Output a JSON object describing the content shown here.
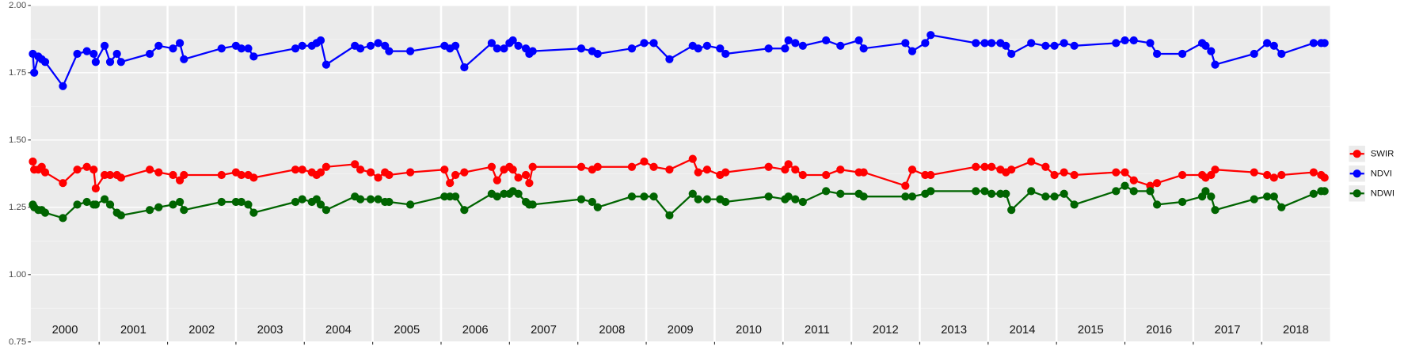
{
  "chart_data": {
    "type": "line",
    "x": [
      2000.03,
      2000.05,
      2000.11,
      2000.16,
      2000.21,
      2000.47,
      2000.68,
      2000.82,
      2000.92,
      2000.95,
      2001.08,
      2001.16,
      2001.26,
      2001.32,
      2001.74,
      2001.87,
      2002.08,
      2002.18,
      2002.24,
      2002.79,
      2003.0,
      2003.08,
      2003.18,
      2003.26,
      2003.87,
      2003.97,
      2004.11,
      2004.18,
      2004.24,
      2004.32,
      2004.74,
      2004.82,
      2004.97,
      2005.08,
      2005.18,
      2005.24,
      2005.55,
      2006.05,
      2006.13,
      2006.21,
      2006.34,
      2006.74,
      2006.82,
      2006.92,
      2007.0,
      2007.05,
      2007.13,
      2007.24,
      2007.29,
      2007.34,
      2008.05,
      2008.21,
      2008.29,
      2008.79,
      2008.97,
      2009.11,
      2009.34,
      2009.68,
      2009.76,
      2009.89,
      2010.08,
      2010.16,
      2010.79,
      2011.03,
      2011.08,
      2011.18,
      2011.29,
      2011.63,
      2011.84,
      2012.11,
      2012.18,
      2012.79,
      2012.89,
      2013.08,
      2013.16,
      2013.82,
      2013.95,
      2014.05,
      2014.18,
      2014.26,
      2014.34,
      2014.63,
      2014.84,
      2014.97,
      2015.11,
      2015.26,
      2015.87,
      2016.0,
      2016.13,
      2016.37,
      2016.47,
      2016.84,
      2017.13,
      2017.18,
      2017.26,
      2017.32,
      2017.89,
      2018.08,
      2018.18,
      2018.29,
      2018.76,
      2018.87,
      2018.92
    ],
    "series": [
      {
        "name": "SWIR",
        "color": "#ff0000",
        "values": [
          1.42,
          1.39,
          1.39,
          1.4,
          1.38,
          1.34,
          1.39,
          1.4,
          1.39,
          1.32,
          1.37,
          1.37,
          1.37,
          1.36,
          1.39,
          1.38,
          1.37,
          1.35,
          1.37,
          1.37,
          1.38,
          1.37,
          1.37,
          1.36,
          1.39,
          1.39,
          1.38,
          1.37,
          1.38,
          1.4,
          1.41,
          1.39,
          1.38,
          1.36,
          1.38,
          1.37,
          1.38,
          1.39,
          1.34,
          1.37,
          1.38,
          1.4,
          1.35,
          1.39,
          1.4,
          1.39,
          1.36,
          1.37,
          1.34,
          1.4,
          1.4,
          1.39,
          1.4,
          1.4,
          1.42,
          1.4,
          1.39,
          1.43,
          1.38,
          1.39,
          1.37,
          1.38,
          1.4,
          1.39,
          1.41,
          1.39,
          1.37,
          1.37,
          1.39,
          1.38,
          1.38,
          1.33,
          1.39,
          1.37,
          1.37,
          1.4,
          1.4,
          1.4,
          1.39,
          1.38,
          1.39,
          1.42,
          1.4,
          1.37,
          1.38,
          1.37,
          1.38,
          1.38,
          1.35,
          1.33,
          1.34,
          1.37,
          1.37,
          1.36,
          1.37,
          1.39,
          1.38,
          1.37,
          1.36,
          1.37,
          1.38,
          1.37,
          1.36
        ]
      },
      {
        "name": "NDVI",
        "color": "#0000ff",
        "values": [
          1.82,
          1.75,
          1.81,
          1.8,
          1.79,
          1.7,
          1.82,
          1.83,
          1.82,
          1.79,
          1.85,
          1.79,
          1.82,
          1.79,
          1.82,
          1.85,
          1.84,
          1.86,
          1.8,
          1.84,
          1.85,
          1.84,
          1.84,
          1.81,
          1.84,
          1.85,
          1.85,
          1.86,
          1.87,
          1.78,
          1.85,
          1.84,
          1.85,
          1.86,
          1.85,
          1.83,
          1.83,
          1.85,
          1.84,
          1.85,
          1.77,
          1.86,
          1.84,
          1.84,
          1.86,
          1.87,
          1.85,
          1.84,
          1.82,
          1.83,
          1.84,
          1.83,
          1.82,
          1.84,
          1.86,
          1.86,
          1.8,
          1.85,
          1.84,
          1.85,
          1.84,
          1.82,
          1.84,
          1.84,
          1.87,
          1.86,
          1.85,
          1.87,
          1.85,
          1.87,
          1.84,
          1.86,
          1.83,
          1.86,
          1.89,
          1.86,
          1.86,
          1.86,
          1.86,
          1.85,
          1.82,
          1.86,
          1.85,
          1.85,
          1.86,
          1.85,
          1.86,
          1.87,
          1.87,
          1.86,
          1.82,
          1.82,
          1.86,
          1.85,
          1.83,
          1.78,
          1.82,
          1.86,
          1.85,
          1.82,
          1.86,
          1.86,
          1.86
        ]
      },
      {
        "name": "NDWI",
        "color": "#006400",
        "values": [
          1.26,
          1.25,
          1.24,
          1.24,
          1.23,
          1.21,
          1.26,
          1.27,
          1.26,
          1.26,
          1.28,
          1.26,
          1.23,
          1.22,
          1.24,
          1.25,
          1.26,
          1.27,
          1.24,
          1.27,
          1.27,
          1.27,
          1.26,
          1.23,
          1.27,
          1.28,
          1.27,
          1.28,
          1.26,
          1.24,
          1.29,
          1.28,
          1.28,
          1.28,
          1.27,
          1.27,
          1.26,
          1.29,
          1.29,
          1.29,
          1.24,
          1.3,
          1.29,
          1.3,
          1.3,
          1.31,
          1.3,
          1.27,
          1.26,
          1.26,
          1.28,
          1.27,
          1.25,
          1.29,
          1.29,
          1.29,
          1.22,
          1.3,
          1.28,
          1.28,
          1.28,
          1.27,
          1.29,
          1.28,
          1.29,
          1.28,
          1.27,
          1.31,
          1.3,
          1.3,
          1.29,
          1.29,
          1.29,
          1.3,
          1.31,
          1.31,
          1.31,
          1.3,
          1.3,
          1.3,
          1.24,
          1.31,
          1.29,
          1.29,
          1.3,
          1.26,
          1.31,
          1.33,
          1.31,
          1.31,
          1.26,
          1.27,
          1.29,
          1.31,
          1.29,
          1.24,
          1.28,
          1.29,
          1.29,
          1.25,
          1.3,
          1.31,
          1.31
        ]
      }
    ],
    "xlim": [
      2000,
      2019
    ],
    "xgrid": [
      2001,
      2002,
      2003,
      2004,
      2005,
      2006,
      2007,
      2008,
      2009,
      2010,
      2011,
      2012,
      2013,
      2014,
      2015,
      2016,
      2017,
      2018
    ],
    "xticks": [
      {
        "value": 2000.5,
        "label": "2000"
      },
      {
        "value": 2001.5,
        "label": "2001"
      },
      {
        "value": 2002.5,
        "label": "2002"
      },
      {
        "value": 2003.5,
        "label": "2003"
      },
      {
        "value": 2004.5,
        "label": "2004"
      },
      {
        "value": 2005.5,
        "label": "2005"
      },
      {
        "value": 2006.5,
        "label": "2006"
      },
      {
        "value": 2007.5,
        "label": "2007"
      },
      {
        "value": 2008.5,
        "label": "2008"
      },
      {
        "value": 2009.5,
        "label": "2009"
      },
      {
        "value": 2010.5,
        "label": "2010"
      },
      {
        "value": 2011.5,
        "label": "2011"
      },
      {
        "value": 2012.5,
        "label": "2012"
      },
      {
        "value": 2013.5,
        "label": "2013"
      },
      {
        "value": 2014.5,
        "label": "2014"
      },
      {
        "value": 2015.5,
        "label": "2015"
      },
      {
        "value": 2016.5,
        "label": "2016"
      },
      {
        "value": 2017.5,
        "label": "2017"
      },
      {
        "value": 2018.5,
        "label": "2018"
      }
    ],
    "ylim": [
      0.75,
      2.0
    ],
    "yticks": [
      {
        "value": 0.75,
        "label": "0.75"
      },
      {
        "value": 1.0,
        "label": "1.00"
      },
      {
        "value": 1.25,
        "label": "1.25"
      },
      {
        "value": 1.5,
        "label": "1.50"
      },
      {
        "value": 1.75,
        "label": "1.75"
      },
      {
        "value": 2.0,
        "label": "2.00"
      }
    ],
    "grid": true,
    "legend_position": "right"
  }
}
